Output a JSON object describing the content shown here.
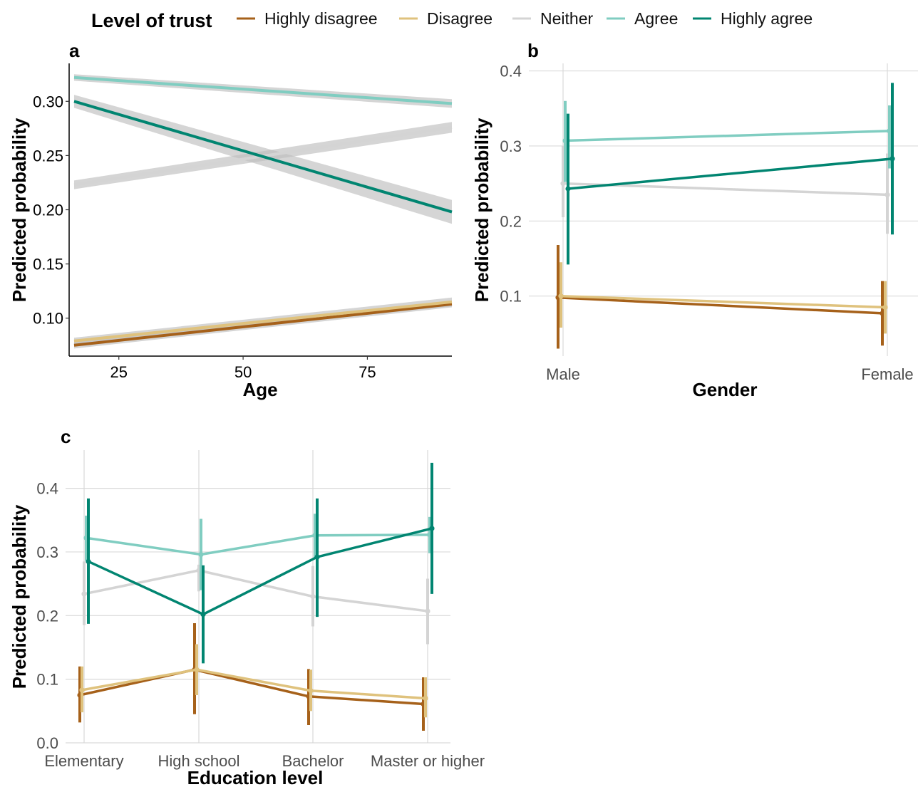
{
  "legend": {
    "title": "Level of trust",
    "items": [
      {
        "label": "Highly disagree",
        "color": "#A6611A"
      },
      {
        "label": "Disagree",
        "color": "#DFC27D"
      },
      {
        "label": "Neither",
        "color": "#D4D4D4"
      },
      {
        "label": "Agree",
        "color": "#80CDC1"
      },
      {
        "label": "Highly agree",
        "color": "#018571"
      }
    ]
  },
  "chart_data": [
    {
      "panel": "a",
      "type": "line",
      "xlabel": "Age",
      "ylabel": "Predicted probability",
      "x_ticks": [
        "25",
        "50",
        "75"
      ],
      "y_ticks": [
        "0.10",
        "0.15",
        "0.20",
        "0.25",
        "0.30"
      ],
      "grid": false,
      "xlim": [
        15,
        92
      ],
      "ylim": [
        0.065,
        0.335
      ],
      "series": [
        {
          "name": "Highly disagree",
          "x": [
            16,
            92
          ],
          "y": [
            0.075,
            0.113
          ],
          "ci_low": [
            0.072,
            0.11
          ],
          "ci_high": [
            0.078,
            0.116
          ]
        },
        {
          "name": "Disagree",
          "x": [
            16,
            92
          ],
          "y": [
            0.079,
            0.115
          ],
          "ci_low": [
            0.076,
            0.111
          ],
          "ci_high": [
            0.082,
            0.119
          ]
        },
        {
          "name": "Neither",
          "x": [
            16,
            92
          ],
          "y": [
            0.223,
            0.276
          ],
          "ci_low": [
            0.219,
            0.271
          ],
          "ci_high": [
            0.227,
            0.281
          ]
        },
        {
          "name": "Agree",
          "x": [
            16,
            92
          ],
          "y": [
            0.322,
            0.298
          ],
          "ci_low": [
            0.319,
            0.294
          ],
          "ci_high": [
            0.325,
            0.302
          ]
        },
        {
          "name": "Highly agree",
          "x": [
            16,
            92
          ],
          "y": [
            0.3,
            0.198
          ],
          "ci_low": [
            0.294,
            0.187
          ],
          "ci_high": [
            0.306,
            0.209
          ]
        }
      ]
    },
    {
      "panel": "b",
      "type": "line",
      "xlabel": "Gender",
      "ylabel": "Predicted probability",
      "categories": [
        "Male",
        "Female"
      ],
      "y_ticks": [
        "0.1",
        "0.2",
        "0.3",
        "0.4"
      ],
      "grid": true,
      "ylim": [
        0.02,
        0.41
      ],
      "series": [
        {
          "name": "Highly disagree",
          "values": [
            0.098,
            0.077
          ],
          "lower": [
            0.03,
            0.034
          ],
          "upper": [
            0.168,
            0.12
          ]
        },
        {
          "name": "Disagree",
          "values": [
            0.1,
            0.085
          ],
          "lower": [
            0.058,
            0.05
          ],
          "upper": [
            0.145,
            0.12
          ]
        },
        {
          "name": "Neither",
          "values": [
            0.25,
            0.235
          ],
          "lower": [
            0.205,
            0.183
          ],
          "upper": [
            0.3,
            0.29
          ]
        },
        {
          "name": "Agree",
          "values": [
            0.307,
            0.32
          ],
          "lower": [
            0.252,
            0.27
          ],
          "upper": [
            0.36,
            0.354
          ]
        },
        {
          "name": "Highly agree",
          "values": [
            0.243,
            0.283
          ],
          "lower": [
            0.142,
            0.182
          ],
          "upper": [
            0.343,
            0.384
          ]
        }
      ]
    },
    {
      "panel": "c",
      "type": "line",
      "xlabel": "Education level",
      "ylabel": "Predicted probability",
      "categories": [
        "Elementary",
        "High school",
        "Bachelor",
        "Master or higher"
      ],
      "y_ticks": [
        "0.0",
        "0.1",
        "0.2",
        "0.3",
        "0.4"
      ],
      "grid": true,
      "ylim": [
        0.0,
        0.46
      ],
      "series": [
        {
          "name": "Highly disagree",
          "values": [
            0.075,
            0.115,
            0.073,
            0.061
          ],
          "lower": [
            0.032,
            0.045,
            0.028,
            0.019
          ],
          "upper": [
            0.12,
            0.188,
            0.116,
            0.103
          ]
        },
        {
          "name": "Disagree",
          "values": [
            0.083,
            0.115,
            0.082,
            0.07
          ],
          "lower": [
            0.048,
            0.075,
            0.05,
            0.04
          ],
          "upper": [
            0.12,
            0.155,
            0.115,
            0.103
          ]
        },
        {
          "name": "Neither",
          "values": [
            0.234,
            0.271,
            0.23,
            0.207
          ],
          "lower": [
            0.185,
            0.238,
            0.183,
            0.155
          ],
          "upper": [
            0.285,
            0.28,
            0.278,
            0.258
          ]
        },
        {
          "name": "Agree",
          "values": [
            0.322,
            0.296,
            0.326,
            0.327
          ],
          "lower": [
            0.286,
            0.24,
            0.29,
            0.298
          ],
          "upper": [
            0.357,
            0.352,
            0.36,
            0.355
          ]
        },
        {
          "name": "Highly agree",
          "values": [
            0.285,
            0.202,
            0.292,
            0.337
          ],
          "lower": [
            0.187,
            0.125,
            0.198,
            0.234
          ],
          "upper": [
            0.384,
            0.279,
            0.384,
            0.44
          ]
        }
      ]
    }
  ]
}
